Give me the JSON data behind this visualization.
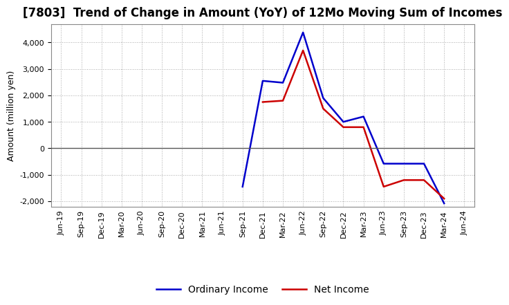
{
  "title": "[7803]  Trend of Change in Amount (YoY) of 12Mo Moving Sum of Incomes",
  "ylabel": "Amount (million yen)",
  "x_labels": [
    "Jun-19",
    "Sep-19",
    "Dec-19",
    "Mar-20",
    "Jun-20",
    "Sep-20",
    "Dec-20",
    "Mar-21",
    "Jun-21",
    "Sep-21",
    "Dec-21",
    "Mar-22",
    "Jun-22",
    "Sep-22",
    "Dec-22",
    "Mar-23",
    "Jun-23",
    "Sep-23",
    "Dec-23",
    "Mar-24",
    "Jun-24"
  ],
  "ordinary_income": [
    null,
    null,
    null,
    null,
    null,
    null,
    null,
    null,
    null,
    -1450,
    2550,
    2480,
    4380,
    1900,
    1000,
    1200,
    -580,
    -580,
    -580,
    -2080,
    null
  ],
  "net_income": [
    null,
    null,
    null,
    null,
    null,
    null,
    null,
    null,
    null,
    null,
    1750,
    1800,
    3700,
    1500,
    800,
    800,
    -1450,
    -1200,
    -1200,
    -1900,
    null
  ],
  "ordinary_color": "#0000CC",
  "net_color": "#CC0000",
  "background_color": "#FFFFFF",
  "plot_bg_color": "#FFFFFF",
  "grid_color": "#AAAAAA",
  "ylim": [
    -2200,
    4700
  ],
  "yticks": [
    -2000,
    -1000,
    0,
    1000,
    2000,
    3000,
    4000
  ],
  "zero_line_color": "#555555",
  "legend_ordinary": "Ordinary Income",
  "legend_net": "Net Income",
  "title_fontsize": 12,
  "axis_fontsize": 9,
  "tick_fontsize": 8,
  "line_width": 1.8
}
